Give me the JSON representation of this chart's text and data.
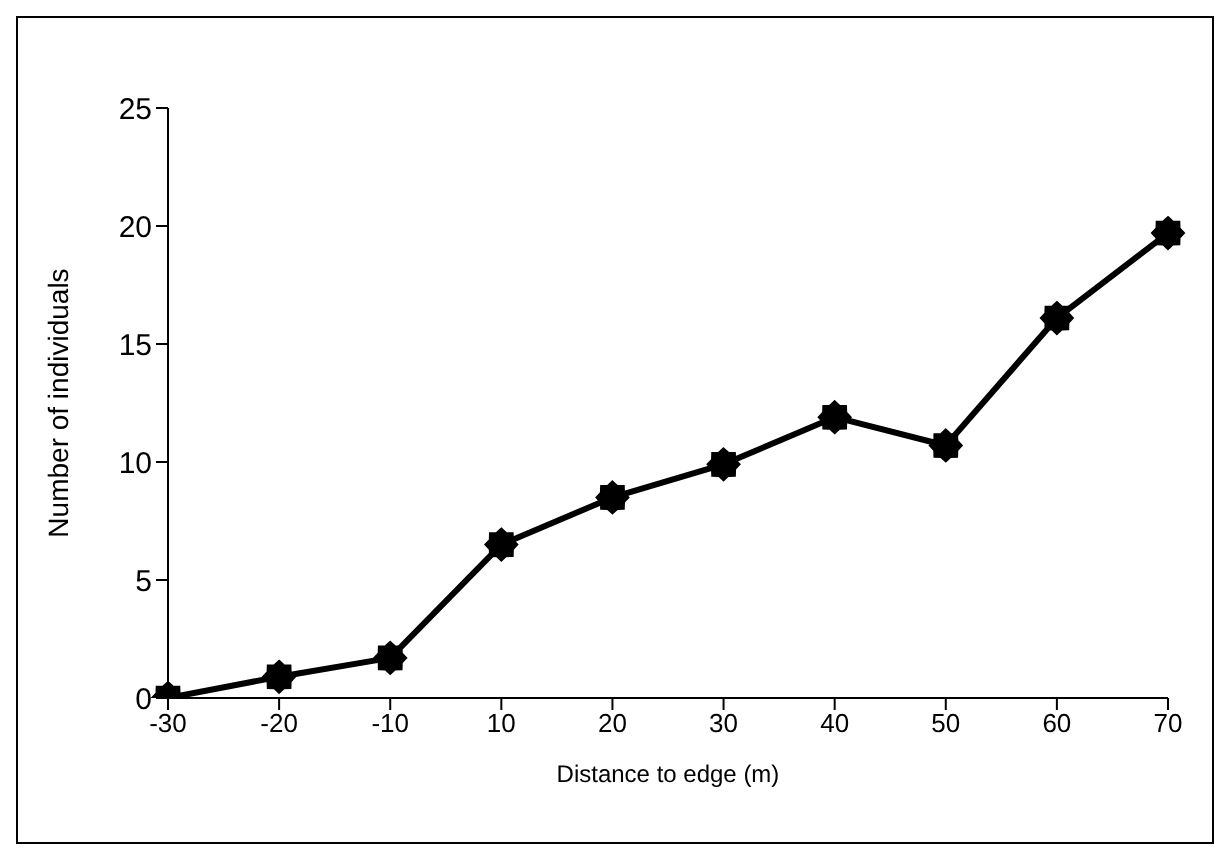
{
  "chart_data": {
    "type": "line",
    "xlabel": "Distance to edge (m)",
    "ylabel": "Number of individuals",
    "categories": [
      "-30",
      "-20",
      "-10",
      "10",
      "20",
      "30",
      "40",
      "50",
      "60",
      "70"
    ],
    "series": [
      {
        "color": "#000000",
        "values": [
          0,
          0.9,
          1.7,
          6.5,
          8.5,
          9.9,
          11.9,
          10.7,
          16.1,
          19.7
        ]
      }
    ],
    "ylim": [
      0,
      25
    ],
    "yticks": [
      0,
      5,
      10,
      15,
      20,
      25
    ],
    "grid": false,
    "legend": false,
    "marker": "star",
    "line_style": "solid"
  }
}
